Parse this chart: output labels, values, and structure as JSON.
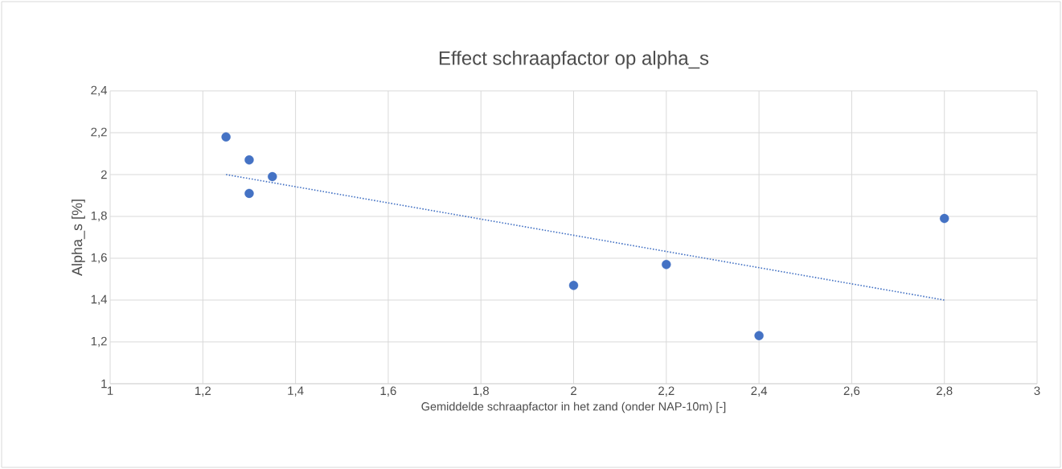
{
  "chart_data": {
    "type": "scatter",
    "title": "Effect schraapfactor op alpha_s",
    "xlabel": "Gemiddelde schraapfactor in het zand (onder NAP-10m)  [-]",
    "ylabel": "Alpha_s [%]",
    "series": [
      {
        "color": "#4472c4",
        "x": [
          1.25,
          1.3,
          1.35,
          1.3,
          2.0,
          2.2,
          2.4,
          2.8
        ],
        "values": [
          2.18,
          2.07,
          1.99,
          1.91,
          1.47,
          1.57,
          1.23,
          1.79
        ]
      },
      {
        "type": "line",
        "color": "#4472c4",
        "line_style": "dotted",
        "marker": "none",
        "x": [
          1.25,
          2.8
        ],
        "values": [
          2.0,
          1.4
        ]
      }
    ],
    "marker": "circle",
    "grid": true,
    "xlim": [
      1,
      3
    ],
    "ylim": [
      1,
      2.4
    ],
    "xticks": [
      1,
      {
        "value": 1.2,
        "label": "1,2"
      },
      {
        "value": 1.4,
        "label": "1,4"
      },
      {
        "value": 1.6,
        "label": "1,6"
      },
      {
        "value": 1.8,
        "label": "1,8"
      },
      2,
      {
        "value": 2.2,
        "label": "2,2"
      },
      {
        "value": 2.4,
        "label": "2,4"
      },
      {
        "value": 2.6,
        "label": "2,6"
      },
      {
        "value": 2.8,
        "label": "2,8"
      },
      3
    ],
    "yticks": [
      1,
      {
        "value": 1.2,
        "label": "1,2"
      },
      {
        "value": 1.4,
        "label": "1,4"
      },
      {
        "value": 1.6,
        "label": "1,6"
      },
      {
        "value": 1.8,
        "label": "1,8"
      },
      2,
      {
        "value": 2.2,
        "label": "2,2"
      },
      {
        "value": 2.4,
        "label": "2,4"
      }
    ]
  }
}
